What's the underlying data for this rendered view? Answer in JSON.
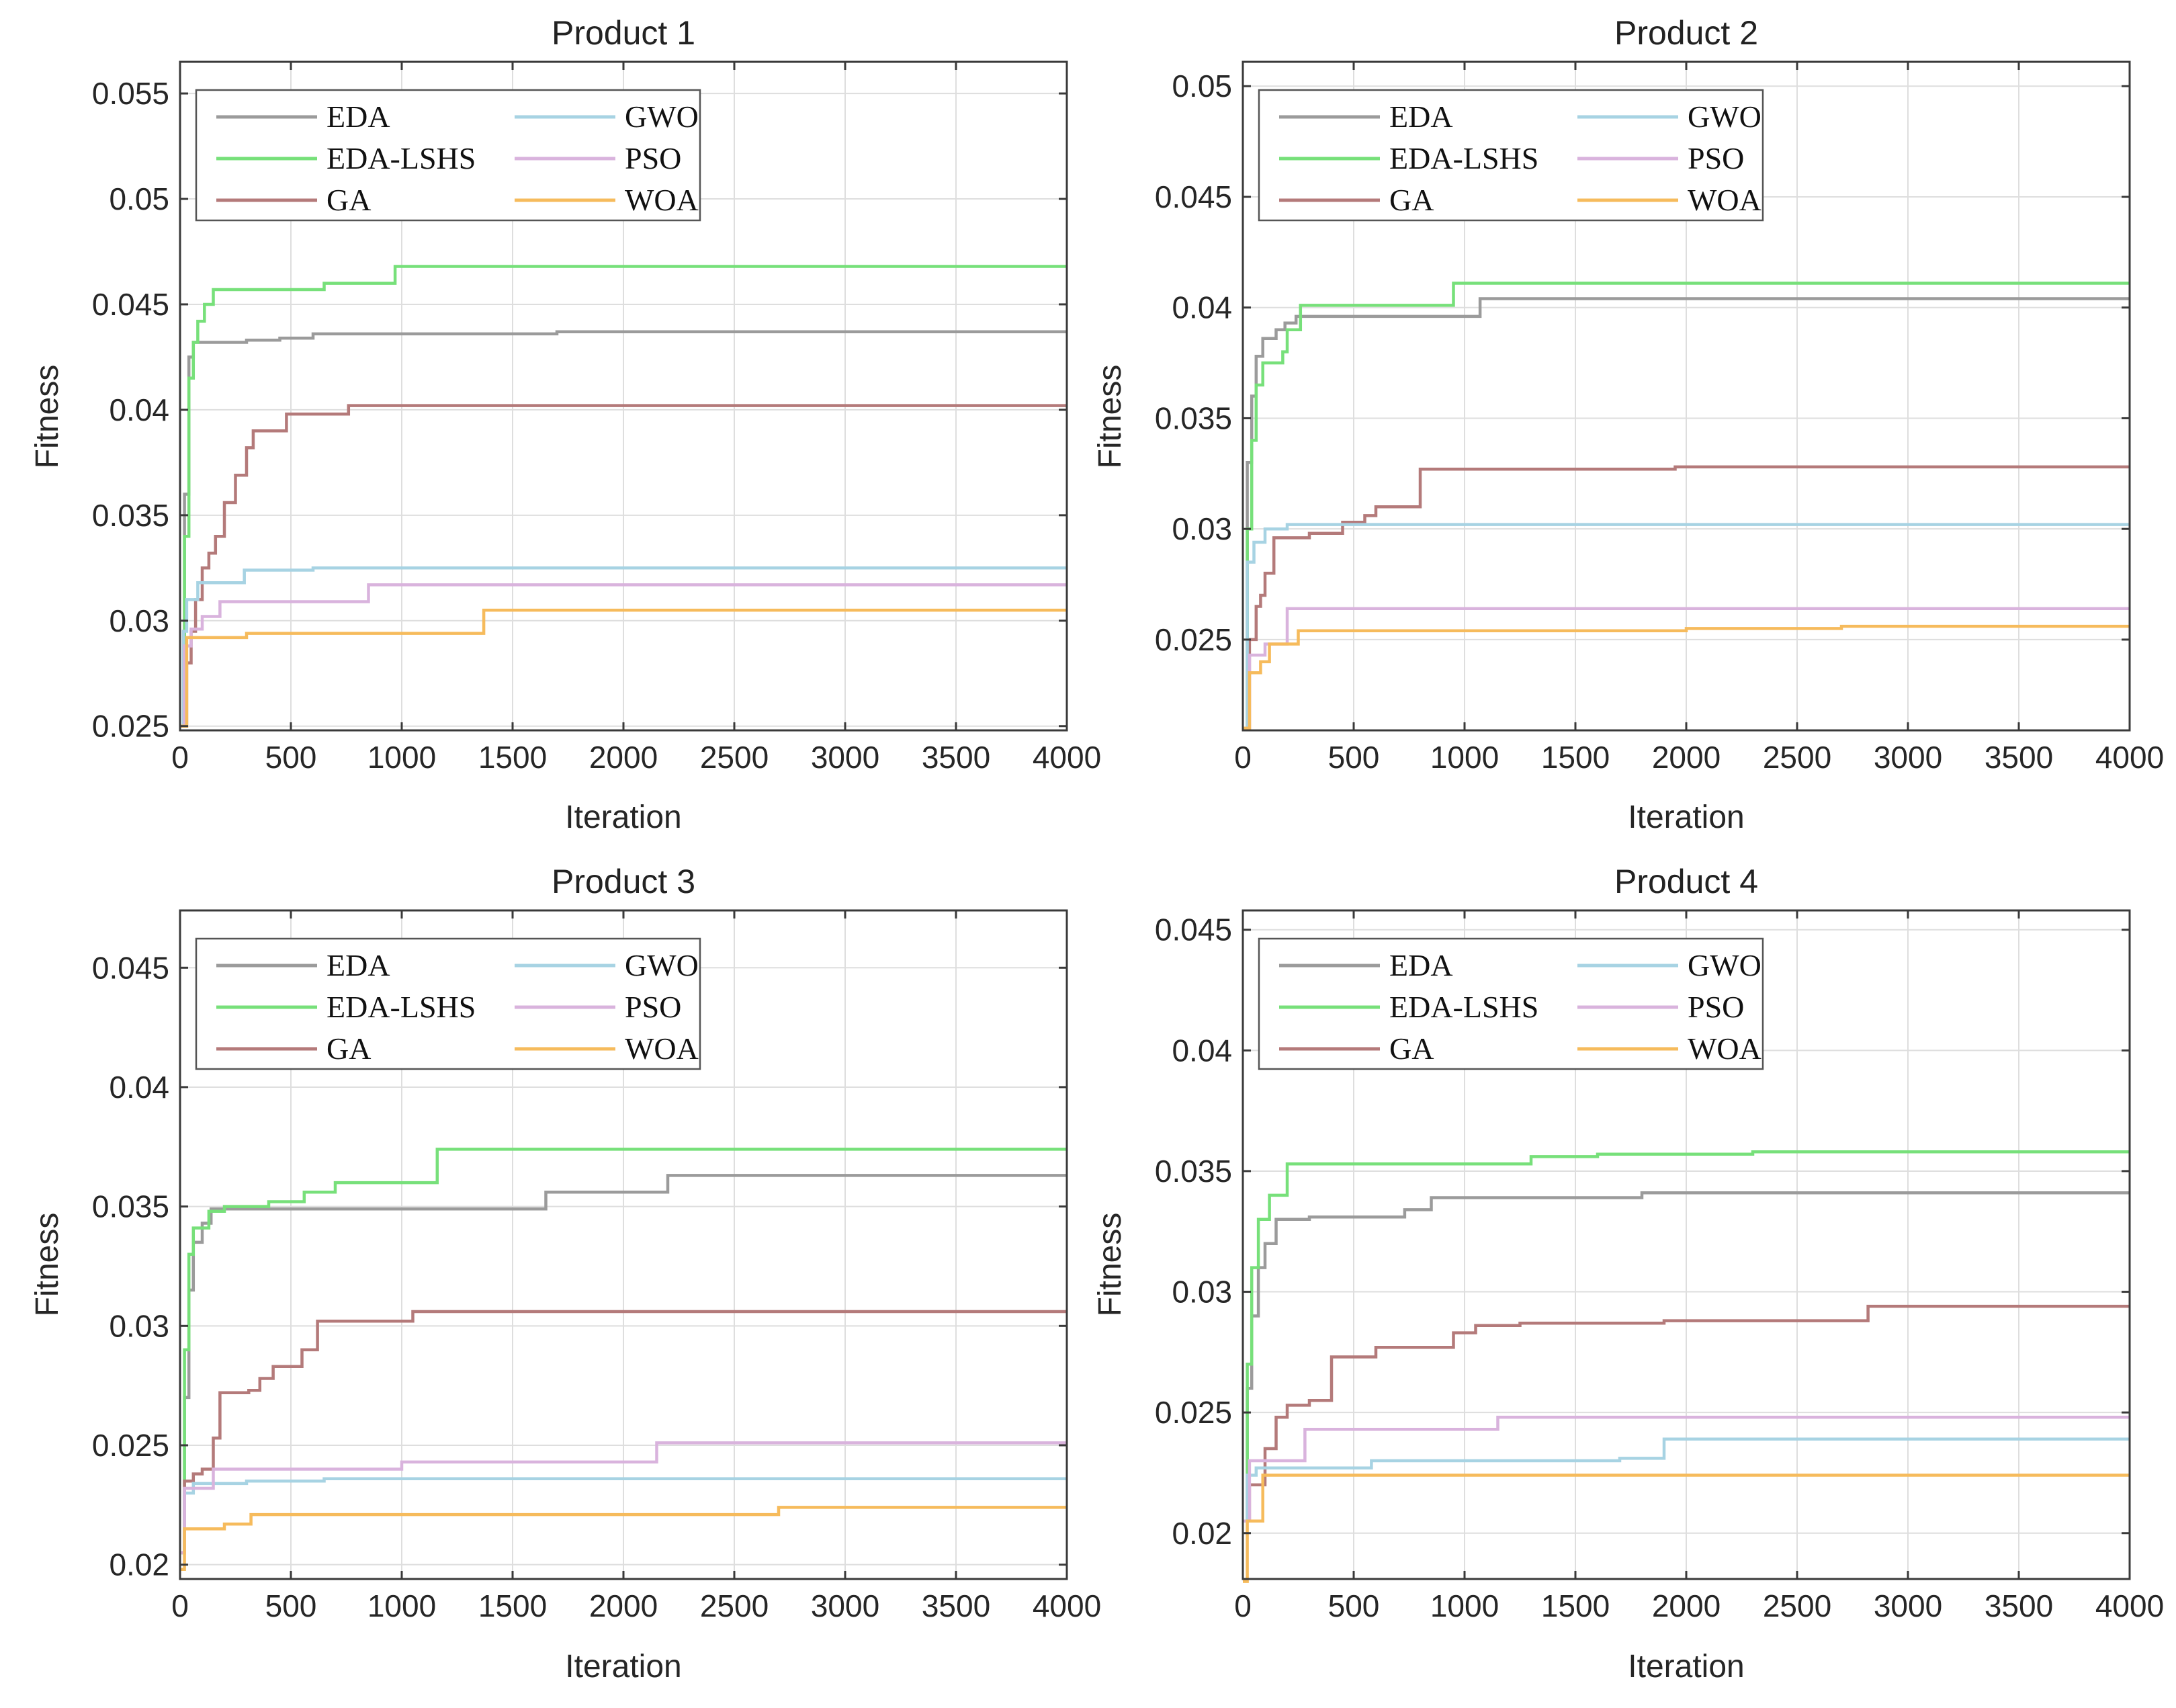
{
  "figure": {
    "series_colors": {
      "EDA": "#9b9b9b",
      "EDA-LSHS": "#77e07a",
      "GA": "#b47a7a",
      "GWO": "#a7d3e3",
      "PSO": "#d9b3dd",
      "WOA": "#f6bb5c"
    }
  },
  "chart_data": [
    {
      "type": "line",
      "title": "Product 1",
      "xlabel": "Iteration",
      "ylabel": "Fitness",
      "xlim": [
        0,
        4000
      ],
      "ylim": [
        0.0248,
        0.0565
      ],
      "xticks": [
        0,
        500,
        1000,
        1500,
        2000,
        2500,
        3000,
        3500,
        4000
      ],
      "yticks": [
        0.025,
        0.03,
        0.035,
        0.04,
        0.045,
        0.05,
        0.055
      ],
      "ytick_labels": [
        "0.025",
        "0.03",
        "0.035",
        "0.04",
        "0.045",
        "0.05",
        "0.055"
      ],
      "legend": [
        "EDA",
        "EDA-LSHS",
        "GA",
        "GWO",
        "PSO",
        "WOA"
      ],
      "legend_placement": "top-left",
      "series": [
        {
          "name": "EDA",
          "points": [
            [
              0,
              0.025
            ],
            [
              20,
              0.036
            ],
            [
              40,
              0.0425
            ],
            [
              60,
              0.0432
            ],
            [
              300,
              0.0433
            ],
            [
              450,
              0.0434
            ],
            [
              600,
              0.0436
            ],
            [
              1700,
              0.0437
            ],
            [
              4000,
              0.0437
            ]
          ]
        },
        {
          "name": "EDA-LSHS",
          "points": [
            [
              0,
              0.025
            ],
            [
              20,
              0.034
            ],
            [
              40,
              0.0415
            ],
            [
              60,
              0.0432
            ],
            [
              80,
              0.0442
            ],
            [
              110,
              0.045
            ],
            [
              150,
              0.0457
            ],
            [
              650,
              0.046
            ],
            [
              970,
              0.0468
            ],
            [
              4000,
              0.0468
            ]
          ]
        },
        {
          "name": "GA",
          "points": [
            [
              0,
              0.025
            ],
            [
              30,
              0.028
            ],
            [
              50,
              0.0295
            ],
            [
              70,
              0.031
            ],
            [
              100,
              0.0325
            ],
            [
              130,
              0.0332
            ],
            [
              160,
              0.034
            ],
            [
              200,
              0.0356
            ],
            [
              250,
              0.0369
            ],
            [
              300,
              0.0382
            ],
            [
              330,
              0.039
            ],
            [
              480,
              0.0398
            ],
            [
              760,
              0.0402
            ],
            [
              4000,
              0.0402
            ]
          ]
        },
        {
          "name": "GWO",
          "points": [
            [
              0,
              0.025
            ],
            [
              15,
              0.0295
            ],
            [
              30,
              0.031
            ],
            [
              80,
              0.0318
            ],
            [
              290,
              0.0324
            ],
            [
              600,
              0.0325
            ],
            [
              4000,
              0.0325
            ]
          ]
        },
        {
          "name": "PSO",
          "points": [
            [
              0,
              0.025
            ],
            [
              20,
              0.0288
            ],
            [
              50,
              0.0296
            ],
            [
              100,
              0.0302
            ],
            [
              180,
              0.0309
            ],
            [
              850,
              0.0317
            ],
            [
              4000,
              0.0317
            ]
          ]
        },
        {
          "name": "WOA",
          "points": [
            [
              0,
              0.025
            ],
            [
              30,
              0.0292
            ],
            [
              300,
              0.0294
            ],
            [
              1370,
              0.0305
            ],
            [
              4000,
              0.0305
            ]
          ]
        }
      ]
    },
    {
      "type": "line",
      "title": "Product 2",
      "xlabel": "Iteration",
      "ylabel": "Fitness",
      "xlim": [
        0,
        4000
      ],
      "ylim": [
        0.0209,
        0.0511
      ],
      "xticks": [
        0,
        500,
        1000,
        1500,
        2000,
        2500,
        3000,
        3500,
        4000
      ],
      "yticks": [
        0.025,
        0.03,
        0.035,
        0.04,
        0.045,
        0.05
      ],
      "ytick_labels": [
        "0.025",
        "0.03",
        "0.035",
        "0.04",
        "0.045",
        "0.05"
      ],
      "legend": [
        "EDA",
        "EDA-LSHS",
        "GA",
        "GWO",
        "PSO",
        "WOA"
      ],
      "legend_placement": "top-left",
      "series": [
        {
          "name": "EDA",
          "points": [
            [
              0,
              0.021
            ],
            [
              20,
              0.033
            ],
            [
              40,
              0.036
            ],
            [
              60,
              0.0378
            ],
            [
              90,
              0.0386
            ],
            [
              150,
              0.039
            ],
            [
              190,
              0.0393
            ],
            [
              240,
              0.0396
            ],
            [
              1070,
              0.0404
            ],
            [
              4000,
              0.0404
            ]
          ]
        },
        {
          "name": "EDA-LSHS",
          "points": [
            [
              0,
              0.021
            ],
            [
              20,
              0.03
            ],
            [
              40,
              0.034
            ],
            [
              60,
              0.0365
            ],
            [
              90,
              0.0375
            ],
            [
              180,
              0.038
            ],
            [
              200,
              0.039
            ],
            [
              260,
              0.0401
            ],
            [
              950,
              0.0411
            ],
            [
              4000,
              0.0411
            ]
          ]
        },
        {
          "name": "GA",
          "points": [
            [
              0,
              0.021
            ],
            [
              30,
              0.025
            ],
            [
              60,
              0.0265
            ],
            [
              80,
              0.027
            ],
            [
              100,
              0.028
            ],
            [
              140,
              0.0296
            ],
            [
              300,
              0.0298
            ],
            [
              450,
              0.0303
            ],
            [
              550,
              0.0306
            ],
            [
              600,
              0.031
            ],
            [
              800,
              0.0327
            ],
            [
              1950,
              0.0328
            ],
            [
              4000,
              0.0328
            ]
          ]
        },
        {
          "name": "GWO",
          "points": [
            [
              0,
              0.021
            ],
            [
              20,
              0.0285
            ],
            [
              50,
              0.0294
            ],
            [
              100,
              0.03
            ],
            [
              200,
              0.0302
            ],
            [
              4000,
              0.0302
            ]
          ]
        },
        {
          "name": "PSO",
          "points": [
            [
              0,
              0.021
            ],
            [
              30,
              0.0243
            ],
            [
              100,
              0.0248
            ],
            [
              200,
              0.0264
            ],
            [
              4000,
              0.0264
            ]
          ]
        },
        {
          "name": "WOA",
          "points": [
            [
              0,
              0.021
            ],
            [
              30,
              0.0235
            ],
            [
              80,
              0.024
            ],
            [
              120,
              0.0248
            ],
            [
              250,
              0.0254
            ],
            [
              2000,
              0.0255
            ],
            [
              2700,
              0.0256
            ],
            [
              4000,
              0.0256
            ]
          ]
        }
      ]
    },
    {
      "type": "line",
      "title": "Product 3",
      "xlabel": "Iteration",
      "ylabel": "Fitness",
      "xlim": [
        0,
        4000
      ],
      "ylim": [
        0.0194,
        0.0474
      ],
      "xticks": [
        0,
        500,
        1000,
        1500,
        2000,
        2500,
        3000,
        3500,
        4000
      ],
      "yticks": [
        0.02,
        0.025,
        0.03,
        0.035,
        0.04,
        0.045
      ],
      "ytick_labels": [
        "0.02",
        "0.025",
        "0.03",
        "0.035",
        "0.04",
        "0.045"
      ],
      "legend": [
        "EDA",
        "EDA-LSHS",
        "GA",
        "GWO",
        "PSO",
        "WOA"
      ],
      "legend_placement": "top-left",
      "series": [
        {
          "name": "EDA",
          "points": [
            [
              0,
              0.0205
            ],
            [
              20,
              0.027
            ],
            [
              40,
              0.0315
            ],
            [
              60,
              0.0335
            ],
            [
              100,
              0.0343
            ],
            [
              140,
              0.0349
            ],
            [
              1650,
              0.0356
            ],
            [
              2200,
              0.0363
            ],
            [
              4000,
              0.0363
            ]
          ]
        },
        {
          "name": "EDA-LSHS",
          "points": [
            [
              0,
              0.0205
            ],
            [
              20,
              0.029
            ],
            [
              40,
              0.033
            ],
            [
              60,
              0.0341
            ],
            [
              130,
              0.0348
            ],
            [
              200,
              0.035
            ],
            [
              400,
              0.0352
            ],
            [
              560,
              0.0356
            ],
            [
              700,
              0.036
            ],
            [
              1160,
              0.0374
            ],
            [
              4000,
              0.0374
            ]
          ]
        },
        {
          "name": "GA",
          "points": [
            [
              0,
              0.0205
            ],
            [
              20,
              0.0235
            ],
            [
              60,
              0.0238
            ],
            [
              100,
              0.024
            ],
            [
              150,
              0.0253
            ],
            [
              180,
              0.0272
            ],
            [
              310,
              0.0273
            ],
            [
              360,
              0.0278
            ],
            [
              420,
              0.0283
            ],
            [
              550,
              0.029
            ],
            [
              620,
              0.0302
            ],
            [
              1050,
              0.0306
            ],
            [
              4000,
              0.0306
            ]
          ]
        },
        {
          "name": "GWO",
          "points": [
            [
              0,
              0.0205
            ],
            [
              20,
              0.023
            ],
            [
              60,
              0.0234
            ],
            [
              300,
              0.0235
            ],
            [
              650,
              0.0236
            ],
            [
              4000,
              0.0236
            ]
          ]
        },
        {
          "name": "PSO",
          "points": [
            [
              0,
              0.0205
            ],
            [
              20,
              0.0232
            ],
            [
              150,
              0.024
            ],
            [
              1000,
              0.0243
            ],
            [
              2150,
              0.0251
            ],
            [
              4000,
              0.0251
            ]
          ]
        },
        {
          "name": "WOA",
          "points": [
            [
              0,
              0.0198
            ],
            [
              20,
              0.0215
            ],
            [
              200,
              0.0217
            ],
            [
              320,
              0.0221
            ],
            [
              2700,
              0.0224
            ],
            [
              4000,
              0.0224
            ]
          ]
        }
      ]
    },
    {
      "type": "line",
      "title": "Product 4",
      "xlabel": "Iteration",
      "ylabel": "Fitness",
      "xlim": [
        0,
        4000
      ],
      "ylim": [
        0.0181,
        0.0458
      ],
      "xticks": [
        0,
        500,
        1000,
        1500,
        2000,
        2500,
        3000,
        3500,
        4000
      ],
      "yticks": [
        0.02,
        0.025,
        0.03,
        0.035,
        0.04,
        0.045
      ],
      "ytick_labels": [
        "0.02",
        "0.025",
        "0.03",
        "0.035",
        "0.04",
        "0.045"
      ],
      "legend": [
        "EDA",
        "EDA-LSHS",
        "GA",
        "GWO",
        "PSO",
        "WOA"
      ],
      "legend_placement": "top-left",
      "series": [
        {
          "name": "EDA",
          "points": [
            [
              0,
              0.0205
            ],
            [
              20,
              0.026
            ],
            [
              40,
              0.029
            ],
            [
              70,
              0.031
            ],
            [
              100,
              0.032
            ],
            [
              150,
              0.033
            ],
            [
              300,
              0.0331
            ],
            [
              730,
              0.0334
            ],
            [
              850,
              0.0339
            ],
            [
              1800,
              0.0341
            ],
            [
              4000,
              0.0341
            ]
          ]
        },
        {
          "name": "EDA-LSHS",
          "points": [
            [
              0,
              0.0205
            ],
            [
              20,
              0.027
            ],
            [
              40,
              0.031
            ],
            [
              70,
              0.033
            ],
            [
              120,
              0.034
            ],
            [
              200,
              0.0353
            ],
            [
              1300,
              0.0356
            ],
            [
              1600,
              0.0357
            ],
            [
              2300,
              0.0358
            ],
            [
              4000,
              0.0358
            ]
          ]
        },
        {
          "name": "GA",
          "points": [
            [
              0,
              0.0205
            ],
            [
              30,
              0.022
            ],
            [
              100,
              0.0235
            ],
            [
              150,
              0.0248
            ],
            [
              200,
              0.0253
            ],
            [
              300,
              0.0255
            ],
            [
              400,
              0.0273
            ],
            [
              600,
              0.0277
            ],
            [
              950,
              0.0283
            ],
            [
              1050,
              0.0286
            ],
            [
              1250,
              0.0287
            ],
            [
              1900,
              0.0288
            ],
            [
              2820,
              0.0294
            ],
            [
              4000,
              0.0294
            ]
          ]
        },
        {
          "name": "GWO",
          "points": [
            [
              0,
              0.0205
            ],
            [
              20,
              0.0224
            ],
            [
              60,
              0.0227
            ],
            [
              580,
              0.023
            ],
            [
              1700,
              0.0231
            ],
            [
              1900,
              0.0239
            ],
            [
              4000,
              0.0239
            ]
          ]
        },
        {
          "name": "PSO",
          "points": [
            [
              0,
              0.0205
            ],
            [
              30,
              0.023
            ],
            [
              280,
              0.0243
            ],
            [
              1150,
              0.0248
            ],
            [
              4000,
              0.0248
            ]
          ]
        },
        {
          "name": "WOA",
          "points": [
            [
              0,
              0.018
            ],
            [
              20,
              0.0205
            ],
            [
              90,
              0.0224
            ],
            [
              4000,
              0.0224
            ]
          ]
        }
      ]
    }
  ]
}
